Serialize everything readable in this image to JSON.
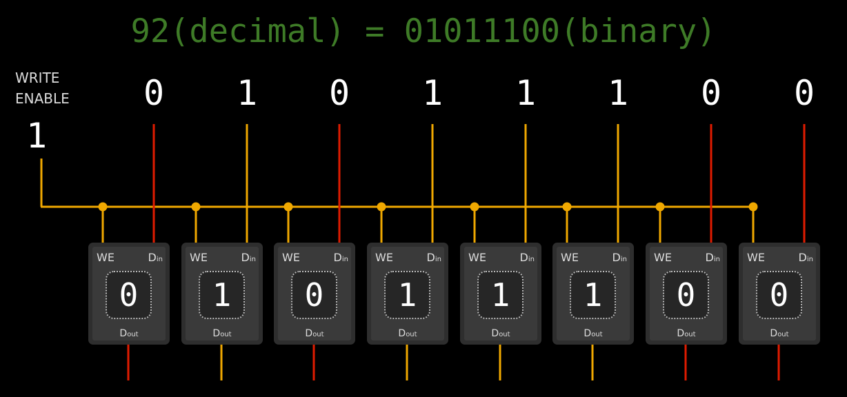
{
  "title": "92(decimal) = 01011100(binary)",
  "write_enable": {
    "label_line1": "WRITE",
    "label_line2": "ENABLE",
    "value": "1"
  },
  "input_bits": [
    "0",
    "1",
    "0",
    "1",
    "1",
    "1",
    "0",
    "0"
  ],
  "cells": [
    {
      "we": "WE",
      "din": "D",
      "din_sub": "in",
      "dout": "D",
      "dout_sub": "out",
      "value": "0"
    },
    {
      "we": "WE",
      "din": "D",
      "din_sub": "in",
      "dout": "D",
      "dout_sub": "out",
      "value": "1"
    },
    {
      "we": "WE",
      "din": "D",
      "din_sub": "in",
      "dout": "D",
      "dout_sub": "out",
      "value": "0"
    },
    {
      "we": "WE",
      "din": "D",
      "din_sub": "in",
      "dout": "D",
      "dout_sub": "out",
      "value": "1"
    },
    {
      "we": "WE",
      "din": "D",
      "din_sub": "in",
      "dout": "D",
      "dout_sub": "out",
      "value": "1"
    },
    {
      "we": "WE",
      "din": "D",
      "din_sub": "in",
      "dout": "D",
      "dout_sub": "out",
      "value": "1"
    },
    {
      "we": "WE",
      "din": "D",
      "din_sub": "in",
      "dout": "D",
      "dout_sub": "out",
      "value": "0"
    },
    {
      "we": "WE",
      "din": "D",
      "din_sub": "in",
      "dout": "D",
      "dout_sub": "out",
      "value": "0"
    }
  ],
  "colors": {
    "title": "#3e7b27",
    "wire_high": "#f0a800",
    "wire_low": "#e01b00",
    "cell": "#2e2e2e",
    "background": "#000000"
  }
}
